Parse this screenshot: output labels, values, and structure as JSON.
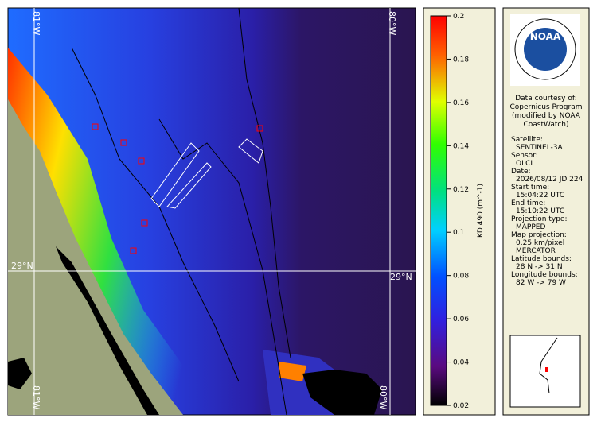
{
  "map": {
    "lon_labels_top": [
      "81°W",
      "80°W"
    ],
    "lon_labels_bottom": [
      "81°W",
      "80°W"
    ],
    "lat_labels": [
      "29°N",
      "29°N"
    ]
  },
  "colorbar": {
    "label": "KD 490 (m^-1)",
    "lim": [
      0.02,
      0.2
    ],
    "ticks": [
      0.02,
      0.04,
      0.06,
      0.08,
      0.1,
      0.12,
      0.14,
      0.16,
      0.18,
      0.2
    ]
  },
  "info": {
    "logo": "NOAA",
    "credit": [
      "Data courtesy of:",
      "Copernicus Program",
      "(modified by NOAA",
      "CoastWatch)"
    ],
    "fields": [
      {
        "label": "Satellite:",
        "value": [
          "SENTINEL-3A"
        ]
      },
      {
        "label": "Sensor:",
        "value": [
          "OLCI"
        ]
      },
      {
        "label": "Date:",
        "value": [
          "2026/08/12 JD 224"
        ]
      },
      {
        "label": "Start time:",
        "value": [
          "15:04:22 UTC"
        ]
      },
      {
        "label": "End time:",
        "value": [
          "15:10:22 UTC"
        ]
      },
      {
        "label": "Projection type:",
        "value": [
          "MAPPED"
        ]
      },
      {
        "label": "Map projection:",
        "value": [
          "0.25 km/pixel",
          "MERCATOR"
        ]
      },
      {
        "label": "Latitude bounds:",
        "value": [
          "28 N -> 31 N"
        ]
      },
      {
        "label": "Longitude bounds:",
        "value": [
          "82 W -> 79 W"
        ]
      }
    ]
  }
}
